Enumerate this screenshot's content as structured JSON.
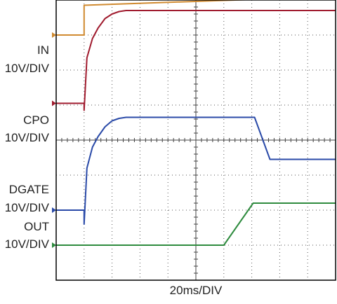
{
  "chart_data": {
    "type": "line",
    "title": "",
    "xlabel": "20ms/DIV",
    "ylabel": "",
    "x_units": "ms",
    "x_per_div": 20,
    "x_range": [
      0,
      200
    ],
    "divisions": {
      "x": 10,
      "y": 8
    },
    "grid": true,
    "labels": [
      {
        "id": "in",
        "lines": [
          "IN",
          "10V/DIV"
        ]
      },
      {
        "id": "cpo",
        "lines": [
          "CPO",
          "10V/DIV"
        ]
      },
      {
        "id": "dgate",
        "lines": [
          "DGATE",
          "10V/DIV"
        ]
      },
      {
        "id": "out",
        "lines": [
          "OUT",
          "10V/DIV"
        ]
      }
    ],
    "series": [
      {
        "color": "#d08a30",
        "ref_div": 7,
        "x": [
          0,
          20,
          20,
          200
        ],
        "div": [
          0,
          0,
          0.85,
          1.1
        ]
      },
      {
        "color": "#a01b2e",
        "ref_div": 5.05,
        "x": [
          0,
          20,
          20,
          22,
          26,
          30,
          35,
          40,
          45,
          50,
          200
        ],
        "div": [
          0,
          0,
          -0.2,
          1.3,
          1.85,
          2.15,
          2.42,
          2.55,
          2.62,
          2.65,
          2.65
        ]
      },
      {
        "color": "#2a4aa8",
        "ref_div": 2,
        "x": [
          0,
          20,
          20,
          22,
          26,
          30,
          35,
          40,
          45,
          50,
          142,
          153,
          200
        ],
        "div": [
          0,
          0,
          -0.4,
          1.2,
          1.8,
          2.1,
          2.38,
          2.55,
          2.62,
          2.65,
          2.65,
          1.45,
          1.45
        ]
      },
      {
        "color": "#2e8b3e",
        "ref_div": 1,
        "x": [
          0,
          120,
          141,
          200
        ],
        "div": [
          0,
          0,
          1.2,
          1.2
        ]
      }
    ],
    "markers": [
      {
        "color": "#d08a30",
        "div": 7
      },
      {
        "color": "#a01b2e",
        "div": 5.05
      },
      {
        "color": "#2a4aa8",
        "div": 2
      },
      {
        "color": "#2e8b3e",
        "div": 1
      }
    ]
  }
}
